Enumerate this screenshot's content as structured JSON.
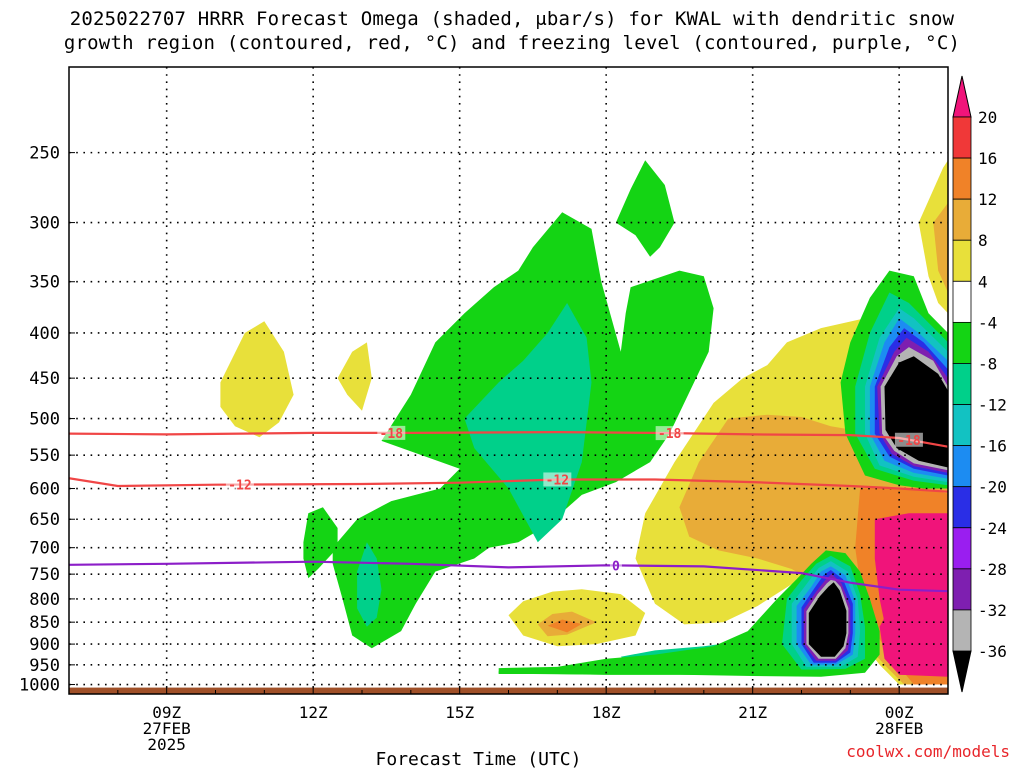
{
  "title_line1": "2025022707 HRRR Forecast Omega (shaded, μbar/s) for KWAL with dendritic snow",
  "title_line2": "growth region (contoured, red, °C) and freezing level (contoured, purple, °C)",
  "credit": "coolwx.com/models",
  "chart_data": {
    "type": "heatmap",
    "xlabel": "Forecast Time (UTC)",
    "x_ticks": [
      {
        "hour": 9,
        "lines": [
          "09Z",
          "27FEB",
          "2025"
        ]
      },
      {
        "hour": 12,
        "lines": [
          "12Z"
        ]
      },
      {
        "hour": 15,
        "lines": [
          "15Z"
        ]
      },
      {
        "hour": 18,
        "lines": [
          "18Z"
        ]
      },
      {
        "hour": 21,
        "lines": [
          "21Z"
        ]
      },
      {
        "hour": 24,
        "lines": [
          "00Z",
          "28FEB"
        ]
      }
    ],
    "x_range_hours": [
      7,
      25
    ],
    "y_axis": "Pressure (hPa), logarithmic, inverted",
    "y_ticks": [
      250,
      300,
      350,
      400,
      450,
      500,
      550,
      600,
      650,
      700,
      750,
      800,
      850,
      900,
      950,
      1000
    ],
    "y_range_hpa": [
      200,
      1025
    ],
    "grid": "dotted horizontal lines at each pressure tick",
    "colorbar": {
      "labels": [
        "20",
        "16",
        "12",
        "8",
        "4",
        "-4",
        "-8",
        "-12",
        "-16",
        "-20",
        "-24",
        "-28",
        "-32",
        "-36"
      ],
      "bins": [
        {
          "color": "#f0f0f0",
          "range": "below -36"
        },
        {
          "color": "#b4b4b4",
          "range": "-36 to -32"
        },
        {
          "color": "#7e1fb0",
          "range": "-32 to -28"
        },
        {
          "color": "#9a1ef0",
          "range": "-28 to -24"
        },
        {
          "color": "#2a2ee6",
          "range": "-24 to -20"
        },
        {
          "color": "#1c8cf2",
          "range": "-20 to -16"
        },
        {
          "color": "#12c2c2",
          "range": "-16 to -12"
        },
        {
          "color": "#00d08a",
          "range": "-12 to -8"
        },
        {
          "color": "#14d414",
          "range": "-8 to -4"
        },
        {
          "color": "#ffffff",
          "range": "-4 to 4"
        },
        {
          "color": "#e8e03a",
          "range": "4 to 8"
        },
        {
          "color": "#e8ac38",
          "range": "8 to 12"
        },
        {
          "color": "#f08228",
          "range": "12 to 16"
        },
        {
          "color": "#f03838",
          "range": "16 to 20"
        },
        {
          "color": "#f0147a",
          "range": "above 20"
        }
      ],
      "under_color": "#000000",
      "over_color": "#f0147a"
    },
    "contours": [
      {
        "label": "-18",
        "color": "#f04646",
        "points": [
          [
            7,
            520
          ],
          [
            9,
            521
          ],
          [
            12,
            519
          ],
          [
            14,
            519
          ],
          [
            17,
            518
          ],
          [
            19,
            519
          ],
          [
            21,
            521
          ],
          [
            23,
            522
          ],
          [
            24,
            526
          ],
          [
            25,
            538
          ]
        ],
        "label_hours": [
          13.6,
          19.3,
          24.2
        ]
      },
      {
        "label": "-12",
        "color": "#f04646",
        "points": [
          [
            7,
            584
          ],
          [
            8,
            596
          ],
          [
            10,
            594
          ],
          [
            13,
            593
          ],
          [
            15,
            591
          ],
          [
            17,
            586
          ],
          [
            19,
            586
          ],
          [
            21,
            590
          ],
          [
            23,
            596
          ],
          [
            24,
            600
          ],
          [
            25,
            605
          ]
        ],
        "label_hours": [
          10.5,
          17.0
        ]
      },
      {
        "label": "0",
        "color": "#8c1ec8",
        "points": [
          [
            7,
            732
          ],
          [
            9,
            730
          ],
          [
            12,
            726
          ],
          [
            14,
            730
          ],
          [
            16,
            737
          ],
          [
            18,
            733
          ],
          [
            20,
            735
          ],
          [
            22,
            748
          ],
          [
            23,
            767
          ],
          [
            24,
            781
          ],
          [
            25,
            784
          ]
        ],
        "label_hours": [
          18.2
        ]
      }
    ],
    "omega_regions": [
      {
        "value_range": "-8 to -4",
        "description": "updraft green bands mid levels 12Z-20Z"
      },
      {
        "value_range": "below -36",
        "description": "strong ascent cores near 22Z 800-950 hPa and 24Z 420-580 hPa"
      },
      {
        "value_range": "above 20",
        "description": "strong descent 23Z-25Z 680-980 hPa"
      }
    ],
    "ground": {
      "color": "#a05028",
      "from_hpa": 1008
    }
  }
}
